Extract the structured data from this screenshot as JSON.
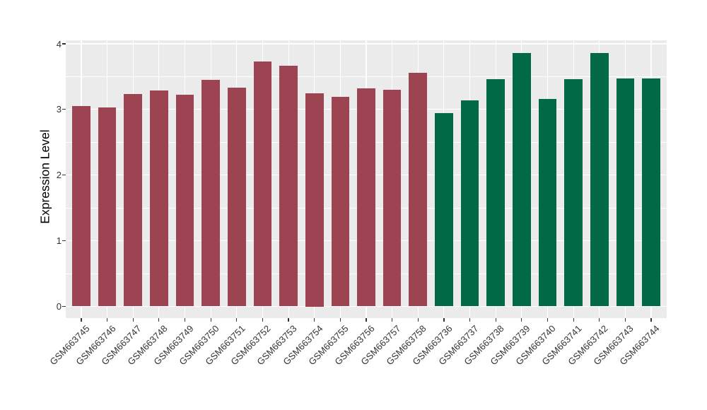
{
  "figure": {
    "background": "#ffffff",
    "panel_background": "#ebebeb",
    "grid_color": "#ffffff",
    "axis_text_color": "#333333",
    "axis_title_color": "#000000",
    "tick_color": "#333333"
  },
  "chart_data": {
    "type": "bar",
    "title": "",
    "xlabel": "",
    "ylabel": "Expression Level",
    "ylim": [
      0,
      4
    ],
    "yticks": [
      "0",
      "1",
      "2",
      "3",
      "4"
    ],
    "ytick_values": [
      0,
      1,
      2,
      3,
      4
    ],
    "yminor_values": [
      0.5,
      1.5,
      2.5,
      3.5
    ],
    "grid": {
      "major": true,
      "minor": true
    },
    "legend_position": "none",
    "categories": [
      "GSM663745",
      "GSM663746",
      "GSM663747",
      "GSM663748",
      "GSM663749",
      "GSM663750",
      "GSM663751",
      "GSM663752",
      "GSM663753",
      "GSM663754",
      "GSM663755",
      "GSM663756",
      "GSM663757",
      "GSM663758",
      "GSM663736",
      "GSM663737",
      "GSM663738",
      "GSM663739",
      "GSM663740",
      "GSM663741",
      "GSM663742",
      "GSM663743",
      "GSM663744"
    ],
    "values": [
      3.05,
      3.03,
      3.24,
      3.29,
      3.22,
      3.45,
      3.33,
      3.73,
      3.67,
      3.25,
      3.19,
      3.32,
      3.3,
      3.56,
      2.95,
      3.14,
      3.46,
      3.86,
      3.16,
      3.46,
      3.86,
      3.47,
      3.47
    ],
    "groups": [
      "group1",
      "group1",
      "group1",
      "group1",
      "group1",
      "group1",
      "group1",
      "group1",
      "group1",
      "group1",
      "group1",
      "group1",
      "group1",
      "group1",
      "group2",
      "group2",
      "group2",
      "group2",
      "group2",
      "group2",
      "group2",
      "group2",
      "group2"
    ],
    "group_colors": {
      "group1": "#9c4451",
      "group2": "#026946"
    }
  }
}
